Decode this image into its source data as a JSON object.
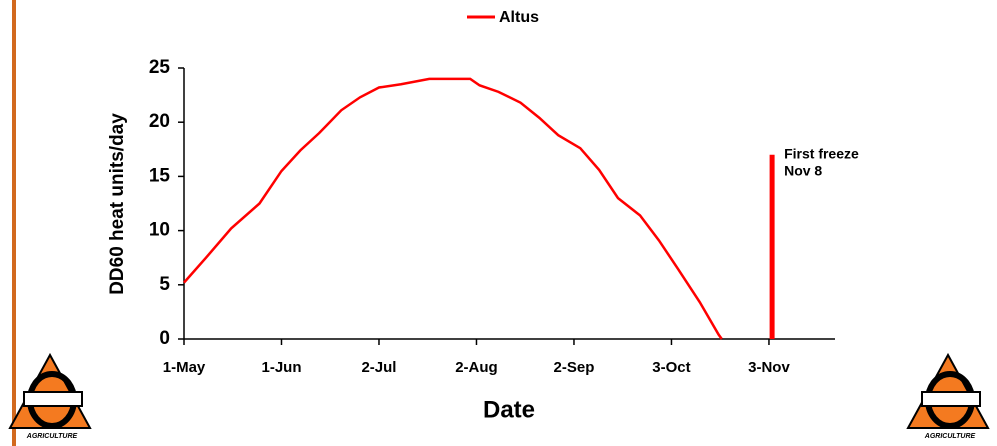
{
  "chart_data": {
    "type": "line",
    "xlabel": "Date",
    "ylabel": "DD60 heat units/day",
    "x": [
      121,
      128,
      136,
      145,
      152,
      158,
      164,
      171,
      177,
      183,
      190,
      199,
      212,
      215,
      221,
      228,
      234,
      240,
      247,
      253,
      259,
      266,
      272,
      278,
      285,
      291,
      292
    ],
    "series": [
      {
        "name": "Altus",
        "color": "#ff0000",
        "values": [
          5.2,
          7.5,
          10.2,
          12.5,
          15.5,
          17.4,
          19,
          21.1,
          22.3,
          23.2,
          23.5,
          24,
          24,
          23.4,
          22.8,
          21.8,
          20.4,
          18.8,
          17.6,
          15.6,
          13,
          11.4,
          9.1,
          6.5,
          3.4,
          0.4,
          0
        ]
      }
    ],
    "xlim": [
      121,
      328
    ],
    "xticks": [
      {
        "value": 121,
        "label": "1-May"
      },
      {
        "value": 152,
        "label": "1-Jun"
      },
      {
        "value": 183,
        "label": "2-Jul"
      },
      {
        "value": 214,
        "label": "2-Aug"
      },
      {
        "value": 245,
        "label": "2-Sep"
      },
      {
        "value": 276,
        "label": "3-Oct"
      },
      {
        "value": 307,
        "label": "3-Nov"
      }
    ],
    "ylim": [
      0,
      25
    ],
    "yticks": [
      0,
      5,
      10,
      15,
      20,
      25
    ],
    "legend": "top",
    "freeze": {
      "x": 308,
      "value": 17,
      "color": "#ff0000",
      "annotation": [
        "First freeze",
        "Nov 8"
      ]
    }
  },
  "logo": {
    "caption": "AGRICULTURE"
  }
}
